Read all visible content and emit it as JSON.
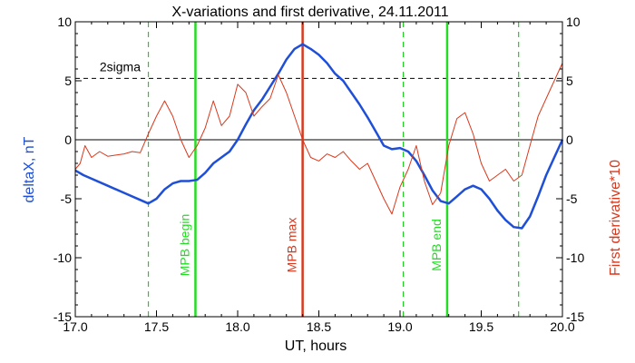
{
  "chart_data": {
    "type": "line",
    "title": "X-variations and first derivative, 24.11.2011",
    "xlabel": "UT, hours",
    "ylabel_left": "deltaX, nT",
    "ylabel_right": "First derivative*10",
    "xlim": [
      17.0,
      20.0
    ],
    "ylim": [
      -15,
      10
    ],
    "x_ticks": [
      17.0,
      17.5,
      18.0,
      18.5,
      19.0,
      19.5,
      20.0
    ],
    "x_tick_labels": [
      "17.0",
      "17.5",
      "18.0",
      "18.5",
      "19.0",
      "19.5",
      "20.0"
    ],
    "y_ticks": [
      10,
      5,
      0,
      -5,
      -10,
      -15
    ],
    "y_tick_labels": [
      "10",
      "5",
      "0",
      "-5",
      "-10",
      "-15"
    ],
    "threshold": {
      "label": "2sigma",
      "value": 5.2
    },
    "zero_line": 0,
    "colors": {
      "deltax": "#1f4fd6",
      "derivative": "#d8381c",
      "mpb_begin_end": "#22dd22",
      "mpb_max": "#d8381c",
      "dashed_green": "#22cc22"
    },
    "vlines": [
      {
        "x": 17.45,
        "style": "dashed",
        "color": "#22cc22",
        "label": ""
      },
      {
        "x": 17.74,
        "style": "solid",
        "color": "#22dd22",
        "label": "MPB begin"
      },
      {
        "x": 18.4,
        "style": "solid",
        "color": "#d8381c",
        "label": "MPB max"
      },
      {
        "x": 19.02,
        "style": "dashed",
        "color": "#22cc22",
        "label": ""
      },
      {
        "x": 19.29,
        "style": "solid",
        "color": "#22dd22",
        "label": "MPB end"
      },
      {
        "x": 19.73,
        "style": "dashed",
        "color": "#22cc22",
        "label": ""
      }
    ],
    "series": [
      {
        "name": "deltaX, nT",
        "color": "#1f4fd6",
        "x": [
          17.0,
          17.05,
          17.1,
          17.2,
          17.3,
          17.4,
          17.45,
          17.5,
          17.55,
          17.6,
          17.65,
          17.7,
          17.75,
          17.8,
          17.85,
          17.9,
          17.95,
          18.0,
          18.05,
          18.1,
          18.15,
          18.2,
          18.25,
          18.3,
          18.35,
          18.4,
          18.45,
          18.5,
          18.55,
          18.6,
          18.65,
          18.7,
          18.75,
          18.8,
          18.85,
          18.9,
          18.95,
          19.0,
          19.05,
          19.1,
          19.15,
          19.2,
          19.25,
          19.3,
          19.35,
          19.4,
          19.45,
          19.5,
          19.55,
          19.6,
          19.65,
          19.7,
          19.75,
          19.8,
          19.85,
          19.9,
          19.95,
          20.0
        ],
        "y": [
          -2.6,
          -3.0,
          -3.3,
          -3.9,
          -4.5,
          -5.1,
          -5.4,
          -5.0,
          -4.2,
          -3.7,
          -3.5,
          -3.5,
          -3.4,
          -2.8,
          -2.0,
          -1.5,
          -1.0,
          0.0,
          1.3,
          2.5,
          3.4,
          4.5,
          5.6,
          6.8,
          7.7,
          8.1,
          7.7,
          7.2,
          6.5,
          5.6,
          5.0,
          4.0,
          3.0,
          1.9,
          0.7,
          -0.5,
          -0.8,
          -0.7,
          -1.0,
          -1.8,
          -3.0,
          -4.3,
          -5.2,
          -5.4,
          -4.8,
          -4.2,
          -3.9,
          -4.2,
          -5.0,
          -6.0,
          -6.8,
          -7.4,
          -7.5,
          -6.5,
          -4.8,
          -3.0,
          -1.5,
          0.0
        ]
      },
      {
        "name": "First derivative*10",
        "color": "#d8381c",
        "x": [
          17.0,
          17.03,
          17.06,
          17.1,
          17.15,
          17.2,
          17.25,
          17.3,
          17.35,
          17.4,
          17.45,
          17.5,
          17.55,
          17.6,
          17.65,
          17.7,
          17.75,
          17.8,
          17.85,
          17.9,
          17.95,
          18.0,
          18.05,
          18.1,
          18.15,
          18.2,
          18.25,
          18.3,
          18.35,
          18.4,
          18.45,
          18.5,
          18.55,
          18.6,
          18.65,
          18.7,
          18.75,
          18.8,
          18.85,
          18.9,
          18.95,
          19.0,
          19.05,
          19.1,
          19.15,
          19.2,
          19.25,
          19.3,
          19.35,
          19.4,
          19.45,
          19.5,
          19.55,
          19.6,
          19.65,
          19.7,
          19.75,
          19.8,
          19.85,
          19.9,
          19.95,
          20.0
        ],
        "y": [
          -2.5,
          -2.0,
          -0.5,
          -1.5,
          -1.0,
          -1.4,
          -1.3,
          -1.2,
          -1.0,
          -1.1,
          0.5,
          2.0,
          3.3,
          2.0,
          0.0,
          -1.5,
          -0.5,
          1.0,
          3.3,
          1.2,
          2.0,
          4.7,
          4.0,
          2.0,
          2.8,
          3.5,
          5.5,
          4.0,
          2.0,
          0.0,
          -1.5,
          -1.8,
          -1.2,
          -1.5,
          -1.0,
          -1.8,
          -2.5,
          -2.0,
          -3.5,
          -5.0,
          -6.3,
          -4.0,
          -2.5,
          -0.5,
          -3.5,
          -5.5,
          -4.5,
          -0.5,
          1.8,
          2.3,
          0.5,
          -2.0,
          -3.5,
          -3.0,
          -2.5,
          -3.5,
          -3.0,
          -0.5,
          2.0,
          3.5,
          5.0,
          6.5
        ]
      }
    ]
  }
}
